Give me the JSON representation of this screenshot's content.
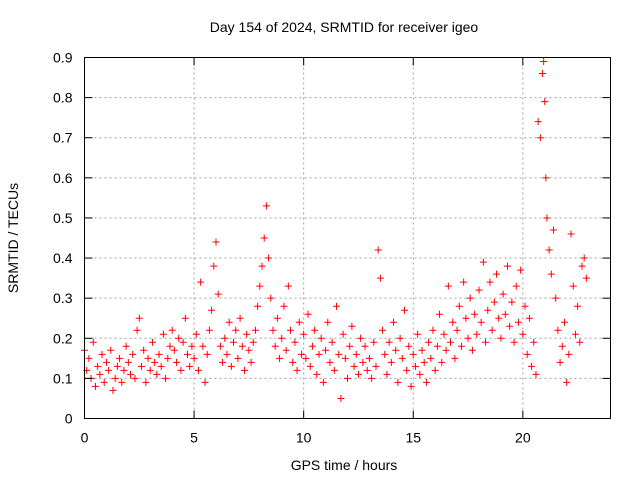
{
  "chart_data": {
    "type": "scatter",
    "title": "Day 154 of 2024, SRMTID for receiver igeo",
    "xlabel": "GPS time / hours",
    "ylabel": "SRMTID / TECUs",
    "xlim": [
      0,
      24
    ],
    "ylim": [
      0,
      0.9
    ],
    "xticks": [
      0,
      5,
      10,
      15,
      20
    ],
    "xtick_labels": [
      "0",
      "5",
      "10",
      "15",
      "20"
    ],
    "yticks": [
      0,
      0.1,
      0.2,
      0.3,
      0.4,
      0.5,
      0.6,
      0.7,
      0.8,
      0.9
    ],
    "ytick_labels": [
      "0",
      "0.1",
      "0.2",
      "0.3",
      "0.4",
      "0.5",
      "0.6",
      "0.7",
      "0.8",
      "0.9"
    ],
    "grid": true,
    "marker": "plus",
    "color": "#ff0000",
    "series": [
      {
        "name": "SRMTID",
        "points": [
          [
            0.0,
            0.17
          ],
          [
            0.1,
            0.12
          ],
          [
            0.2,
            0.15
          ],
          [
            0.3,
            0.1
          ],
          [
            0.4,
            0.19
          ],
          [
            0.5,
            0.08
          ],
          [
            0.6,
            0.13
          ],
          [
            0.7,
            0.11
          ],
          [
            0.8,
            0.16
          ],
          [
            0.9,
            0.09
          ],
          [
            1.0,
            0.14
          ],
          [
            1.1,
            0.12
          ],
          [
            1.2,
            0.17
          ],
          [
            1.3,
            0.07
          ],
          [
            1.4,
            0.1
          ],
          [
            1.5,
            0.13
          ],
          [
            1.6,
            0.15
          ],
          [
            1.7,
            0.09
          ],
          [
            1.8,
            0.12
          ],
          [
            1.9,
            0.18
          ],
          [
            2.0,
            0.14
          ],
          [
            2.1,
            0.11
          ],
          [
            2.2,
            0.16
          ],
          [
            2.3,
            0.1
          ],
          [
            2.4,
            0.22
          ],
          [
            2.5,
            0.25
          ],
          [
            2.6,
            0.13
          ],
          [
            2.7,
            0.17
          ],
          [
            2.8,
            0.09
          ],
          [
            2.9,
            0.15
          ],
          [
            3.0,
            0.12
          ],
          [
            3.1,
            0.19
          ],
          [
            3.2,
            0.14
          ],
          [
            3.3,
            0.11
          ],
          [
            3.4,
            0.16
          ],
          [
            3.5,
            0.13
          ],
          [
            3.6,
            0.21
          ],
          [
            3.7,
            0.1
          ],
          [
            3.8,
            0.15
          ],
          [
            3.9,
            0.18
          ],
          [
            4.0,
            0.22
          ],
          [
            4.1,
            0.17
          ],
          [
            4.2,
            0.14
          ],
          [
            4.3,
            0.2
          ],
          [
            4.4,
            0.12
          ],
          [
            4.5,
            0.19
          ],
          [
            4.6,
            0.25
          ],
          [
            4.7,
            0.16
          ],
          [
            4.8,
            0.13
          ],
          [
            4.9,
            0.18
          ],
          [
            5.0,
            0.15
          ],
          [
            5.1,
            0.21
          ],
          [
            5.2,
            0.12
          ],
          [
            5.3,
            0.34
          ],
          [
            5.4,
            0.18
          ],
          [
            5.5,
            0.09
          ],
          [
            5.6,
            0.16
          ],
          [
            5.7,
            0.22
          ],
          [
            5.8,
            0.27
          ],
          [
            5.9,
            0.38
          ],
          [
            6.0,
            0.44
          ],
          [
            6.1,
            0.31
          ],
          [
            6.2,
            0.18
          ],
          [
            6.3,
            0.14
          ],
          [
            6.4,
            0.2
          ],
          [
            6.5,
            0.16
          ],
          [
            6.6,
            0.24
          ],
          [
            6.7,
            0.13
          ],
          [
            6.8,
            0.19
          ],
          [
            6.9,
            0.22
          ],
          [
            7.0,
            0.15
          ],
          [
            7.1,
            0.25
          ],
          [
            7.2,
            0.18
          ],
          [
            7.3,
            0.12
          ],
          [
            7.4,
            0.21
          ],
          [
            7.5,
            0.17
          ],
          [
            7.6,
            0.14
          ],
          [
            7.7,
            0.19
          ],
          [
            7.8,
            0.22
          ],
          [
            7.9,
            0.28
          ],
          [
            8.0,
            0.33
          ],
          [
            8.1,
            0.38
          ],
          [
            8.2,
            0.45
          ],
          [
            8.3,
            0.53
          ],
          [
            8.4,
            0.4
          ],
          [
            8.5,
            0.3
          ],
          [
            8.6,
            0.22
          ],
          [
            8.7,
            0.18
          ],
          [
            8.8,
            0.25
          ],
          [
            8.9,
            0.15
          ],
          [
            9.0,
            0.2
          ],
          [
            9.1,
            0.28
          ],
          [
            9.2,
            0.17
          ],
          [
            9.3,
            0.33
          ],
          [
            9.4,
            0.22
          ],
          [
            9.5,
            0.14
          ],
          [
            9.6,
            0.19
          ],
          [
            9.7,
            0.12
          ],
          [
            9.8,
            0.24
          ],
          [
            9.9,
            0.16
          ],
          [
            10.0,
            0.21
          ],
          [
            10.1,
            0.15
          ],
          [
            10.2,
            0.26
          ],
          [
            10.3,
            0.13
          ],
          [
            10.4,
            0.18
          ],
          [
            10.5,
            0.22
          ],
          [
            10.6,
            0.11
          ],
          [
            10.7,
            0.16
          ],
          [
            10.8,
            0.2
          ],
          [
            10.9,
            0.09
          ],
          [
            11.0,
            0.17
          ],
          [
            11.1,
            0.24
          ],
          [
            11.2,
            0.14
          ],
          [
            11.3,
            0.19
          ],
          [
            11.4,
            0.12
          ],
          [
            11.5,
            0.28
          ],
          [
            11.6,
            0.16
          ],
          [
            11.7,
            0.05
          ],
          [
            11.8,
            0.21
          ],
          [
            11.9,
            0.15
          ],
          [
            12.0,
            0.1
          ],
          [
            12.1,
            0.18
          ],
          [
            12.2,
            0.23
          ],
          [
            12.3,
            0.13
          ],
          [
            12.4,
            0.16
          ],
          [
            12.5,
            0.11
          ],
          [
            12.6,
            0.2
          ],
          [
            12.7,
            0.14
          ],
          [
            12.8,
            0.18
          ],
          [
            12.9,
            0.12
          ],
          [
            13.0,
            0.15
          ],
          [
            13.1,
            0.1
          ],
          [
            13.2,
            0.19
          ],
          [
            13.3,
            0.13
          ],
          [
            13.4,
            0.42
          ],
          [
            13.5,
            0.35
          ],
          [
            13.6,
            0.22
          ],
          [
            13.7,
            0.16
          ],
          [
            13.8,
            0.11
          ],
          [
            13.9,
            0.19
          ],
          [
            14.0,
            0.14
          ],
          [
            14.1,
            0.24
          ],
          [
            14.2,
            0.17
          ],
          [
            14.3,
            0.09
          ],
          [
            14.4,
            0.2
          ],
          [
            14.5,
            0.15
          ],
          [
            14.6,
            0.27
          ],
          [
            14.7,
            0.12
          ],
          [
            14.8,
            0.18
          ],
          [
            14.9,
            0.08
          ],
          [
            15.0,
            0.16
          ],
          [
            15.1,
            0.13
          ],
          [
            15.2,
            0.21
          ],
          [
            15.3,
            0.11
          ],
          [
            15.4,
            0.17
          ],
          [
            15.5,
            0.14
          ],
          [
            15.6,
            0.09
          ],
          [
            15.7,
            0.19
          ],
          [
            15.8,
            0.15
          ],
          [
            15.9,
            0.22
          ],
          [
            16.0,
            0.12
          ],
          [
            16.1,
            0.18
          ],
          [
            16.2,
            0.26
          ],
          [
            16.3,
            0.14
          ],
          [
            16.4,
            0.21
          ],
          [
            16.5,
            0.17
          ],
          [
            16.6,
            0.33
          ],
          [
            16.7,
            0.19
          ],
          [
            16.8,
            0.24
          ],
          [
            16.9,
            0.15
          ],
          [
            17.0,
            0.22
          ],
          [
            17.1,
            0.28
          ],
          [
            17.2,
            0.18
          ],
          [
            17.3,
            0.34
          ],
          [
            17.4,
            0.25
          ],
          [
            17.5,
            0.2
          ],
          [
            17.6,
            0.3
          ],
          [
            17.7,
            0.17
          ],
          [
            17.8,
            0.26
          ],
          [
            17.9,
            0.21
          ],
          [
            18.0,
            0.32
          ],
          [
            18.1,
            0.24
          ],
          [
            18.2,
            0.39
          ],
          [
            18.3,
            0.19
          ],
          [
            18.4,
            0.27
          ],
          [
            18.5,
            0.34
          ],
          [
            18.6,
            0.22
          ],
          [
            18.7,
            0.29
          ],
          [
            18.8,
            0.36
          ],
          [
            18.9,
            0.25
          ],
          [
            19.0,
            0.2
          ],
          [
            19.1,
            0.31
          ],
          [
            19.2,
            0.26
          ],
          [
            19.3,
            0.38
          ],
          [
            19.4,
            0.23
          ],
          [
            19.5,
            0.29
          ],
          [
            19.6,
            0.19
          ],
          [
            19.7,
            0.33
          ],
          [
            19.8,
            0.24
          ],
          [
            19.9,
            0.37
          ],
          [
            20.0,
            0.21
          ],
          [
            20.1,
            0.28
          ],
          [
            20.2,
            0.16
          ],
          [
            20.3,
            0.25
          ],
          [
            20.4,
            0.13
          ],
          [
            20.5,
            0.19
          ],
          [
            20.6,
            0.11
          ],
          [
            20.7,
            0.74
          ],
          [
            20.8,
            0.7
          ],
          [
            20.9,
            0.86
          ],
          [
            20.95,
            0.89
          ],
          [
            21.0,
            0.79
          ],
          [
            21.05,
            0.6
          ],
          [
            21.1,
            0.5
          ],
          [
            21.2,
            0.42
          ],
          [
            21.3,
            0.36
          ],
          [
            21.4,
            0.47
          ],
          [
            21.5,
            0.3
          ],
          [
            21.6,
            0.22
          ],
          [
            21.7,
            0.14
          ],
          [
            21.8,
            0.18
          ],
          [
            21.9,
            0.24
          ],
          [
            22.0,
            0.09
          ],
          [
            22.1,
            0.16
          ],
          [
            22.2,
            0.46
          ],
          [
            22.3,
            0.33
          ],
          [
            22.4,
            0.21
          ],
          [
            22.5,
            0.28
          ],
          [
            22.6,
            0.19
          ],
          [
            22.7,
            0.38
          ],
          [
            22.8,
            0.4
          ],
          [
            22.9,
            0.35
          ]
        ]
      }
    ]
  }
}
